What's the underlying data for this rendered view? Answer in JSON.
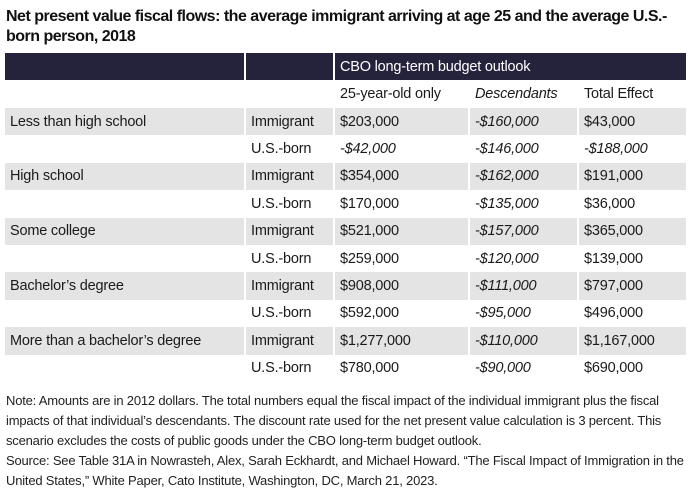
{
  "title": "Net present value fiscal flows: the average immigrant arriving at age 25 and the average U.S.-born person, 2018",
  "header": {
    "group_label": "CBO long-term budget outlook",
    "columns": [
      "25-year-old only",
      "Descendants",
      "Total Effect"
    ]
  },
  "rows": [
    {
      "education": "Less than high school",
      "group": "Immigrant",
      "only": "$203,000",
      "descendants": "-$160,000",
      "total": "$43,000"
    },
    {
      "education": "",
      "group": "U.S.-born",
      "only": "-$42,000",
      "descendants": "-$146,000",
      "total": "-$188,000"
    },
    {
      "education": "High school",
      "group": "Immigrant",
      "only": "$354,000",
      "descendants": "-$162,000",
      "total": "$191,000"
    },
    {
      "education": "",
      "group": "U.S.-born",
      "only": "$170,000",
      "descendants": "-$135,000",
      "total": "$36,000"
    },
    {
      "education": "Some college",
      "group": "Immigrant",
      "only": "$521,000",
      "descendants": "-$157,000",
      "total": "$365,000"
    },
    {
      "education": "",
      "group": "U.S.-born",
      "only": "$259,000",
      "descendants": "-$120,000",
      "total": "$139,000"
    },
    {
      "education": "Bachelor’s degree",
      "group": "Immigrant",
      "only": "$908,000",
      "descendants": "-$111,000",
      "total": "$797,000"
    },
    {
      "education": "",
      "group": "U.S.-born",
      "only": "$592,000",
      "descendants": "-$95,000",
      "total": "$496,000"
    },
    {
      "education": "More than a bachelor’s degree",
      "group": "Immigrant",
      "only": "$1,277,000",
      "descendants": "-$110,000",
      "total": "$1,167,000"
    },
    {
      "education": "",
      "group": "U.S.-born",
      "only": "$780,000",
      "descendants": "-$90,000",
      "total": "$690,000"
    }
  ],
  "note": "Note: Amounts are in 2012 dollars. The total numbers equal the fiscal impact of the individual immigrant plus the fiscal impacts of that individual’s descendants. The discount rate used for the net present value calculation is 3 percent. This scenario excludes the costs of public goods under the CBO long-term budget outlook.",
  "source": "Source: See Table 31A in Nowrasteh, Alex, Sarah Eckhardt, and Michael Howard. “The Fiscal Impact of Immigration in the United States,” White Paper, Cato Institute, Washington, DC, March 21, 2023.",
  "colors": {
    "header_bg": "#25223b",
    "row_shade": "#e4e4e4"
  }
}
